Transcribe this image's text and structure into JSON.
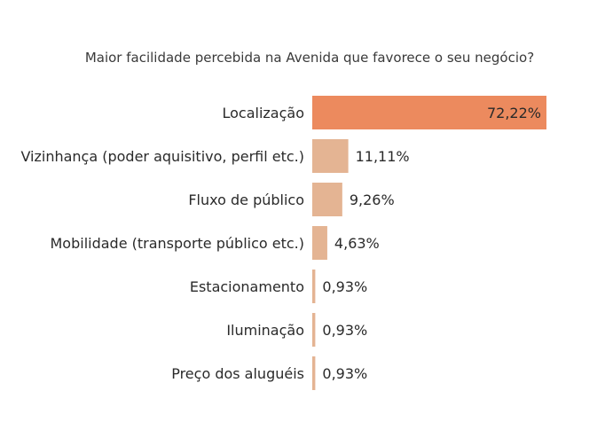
{
  "chart_data": {
    "type": "bar",
    "orientation": "horizontal",
    "title": "Maior facilidade percebida na Avenida que favorece o seu negócio?",
    "categories": [
      "Localização",
      "Vizinhança (poder aquisitivo, perfil etc.)",
      "Fluxo de público",
      "Mobilidade (transporte público etc.)",
      "Estacionamento",
      "Iluminação",
      "Preço dos aluguéis"
    ],
    "values": [
      72.22,
      11.11,
      9.26,
      4.63,
      0.93,
      0.93,
      0.93
    ],
    "value_labels": [
      "72,22%",
      "11,11%",
      "9,26%",
      "4,63%",
      "0,93%",
      "0,93%",
      "0,93%"
    ],
    "xlim": [
      0,
      72.22
    ],
    "grid": false,
    "legend": "none",
    "colors": {
      "highlight": "#ec8a5e",
      "default": "#e4b493"
    }
  }
}
